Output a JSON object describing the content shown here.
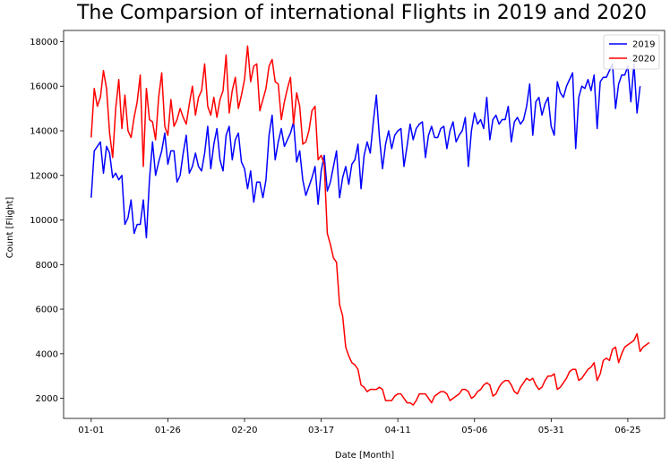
{
  "chart_data": {
    "type": "line",
    "title": "The Comparsion of international Flights in 2019 and 2020",
    "xlabel": "Date [Month]",
    "ylabel": "Count [Flight]",
    "x_tick_labels": [
      "01-01",
      "01-26",
      "02-20",
      "03-17",
      "04-11",
      "05-06",
      "05-31",
      "06-25"
    ],
    "x_tick_days": [
      0,
      25,
      50,
      75,
      100,
      125,
      150,
      175
    ],
    "xlim": [
      -9,
      187
    ],
    "ylim": [
      1100,
      18500
    ],
    "y_ticks": [
      2000,
      4000,
      6000,
      8000,
      10000,
      12000,
      14000,
      16000,
      18000
    ],
    "y_tick_labels": [
      "2000",
      "4000",
      "6000",
      "8000",
      "10000",
      "12000",
      "14000",
      "16000",
      "18000"
    ],
    "x_day_step": 1,
    "legend_position": "top-right",
    "grid": false,
    "series": [
      {
        "name": "2019",
        "color": "#0000ff",
        "values": [
          11000,
          13100,
          13300,
          13500,
          12100,
          13300,
          13000,
          11900,
          12100,
          11800,
          12000,
          9800,
          10100,
          10900,
          9400,
          9800,
          9800,
          10900,
          9200,
          11800,
          13500,
          12000,
          12600,
          13100,
          13900,
          12500,
          13100,
          13100,
          11700,
          12000,
          13000,
          13800,
          12100,
          12400,
          13000,
          12400,
          12200,
          13000,
          14200,
          12300,
          13400,
          14100,
          12700,
          12200,
          13800,
          14200,
          12700,
          13600,
          13900,
          12600,
          12300,
          11400,
          12200,
          10800,
          11700,
          11700,
          11000,
          11800,
          13800,
          14700,
          12700,
          13500,
          14100,
          13300,
          13600,
          13900,
          14400,
          12600,
          13100,
          11800,
          11100,
          11500,
          11900,
          12400,
          10700,
          12200,
          12900,
          11300,
          11700,
          12400,
          13100,
          11000,
          11900,
          12400,
          11600,
          12500,
          12700,
          13400,
          11400,
          12900,
          13500,
          13000,
          14400,
          15600,
          13700,
          12300,
          13400,
          14000,
          13200,
          13800,
          14000,
          14100,
          12400,
          13300,
          14300,
          13600,
          14100,
          14300,
          14400,
          12800,
          13800,
          14200,
          13700,
          13700,
          14100,
          14200,
          13200,
          14000,
          14400,
          13500,
          13800,
          14000,
          14600,
          12400,
          14000,
          14800,
          14300,
          14500,
          14100,
          15500,
          13600,
          14500,
          14700,
          14300,
          14500,
          14500,
          15100,
          13500,
          14400,
          14600,
          14300,
          14500,
          15100,
          16100,
          13800,
          15300,
          15500,
          14700,
          15200,
          15500,
          14200,
          13800,
          16200,
          15700,
          15500,
          16000,
          16300,
          16600,
          13200,
          15500,
          16000,
          15900,
          16300,
          15800,
          16500,
          14100,
          16200,
          16400,
          16400,
          16700,
          17000,
          15000,
          16100,
          16500,
          16500,
          16900,
          15300,
          17000,
          14800,
          16000
        ]
      },
      {
        "name": "2020",
        "color": "#ff0000",
        "values": [
          13700,
          15900,
          15100,
          15500,
          16700,
          15900,
          13900,
          12800,
          15000,
          16300,
          14100,
          15600,
          14000,
          13700,
          14600,
          15300,
          16500,
          12400,
          15900,
          14500,
          14400,
          13600,
          15500,
          16600,
          14200,
          13800,
          15400,
          14200,
          14500,
          15000,
          14600,
          14300,
          15200,
          16000,
          14700,
          15500,
          15800,
          17000,
          15100,
          14700,
          15500,
          14600,
          15400,
          15800,
          17400,
          14800,
          15800,
          16400,
          15000,
          15600,
          16300,
          17800,
          16200,
          16900,
          17000,
          14900,
          15400,
          15900,
          16900,
          17200,
          16200,
          16100,
          14500,
          15300,
          15900,
          16400,
          14300,
          15700,
          15100,
          13400,
          13500,
          14000,
          14900,
          15100,
          12700,
          12900,
          12500,
          9400,
          8900,
          8300,
          8100,
          6200,
          5700,
          4300,
          3900,
          3600,
          3500,
          3300,
          2600,
          2500,
          2300,
          2400,
          2400,
          2400,
          2500,
          2400,
          1900,
          1900,
          1900,
          2100,
          2200,
          2200,
          2000,
          1800,
          1800,
          1700,
          1900,
          2200,
          2200,
          2200,
          2000,
          1800,
          2100,
          2200,
          2300,
          2300,
          2200,
          1900,
          2000,
          2100,
          2200,
          2400,
          2400,
          2300,
          2000,
          2100,
          2300,
          2400,
          2600,
          2700,
          2600,
          2100,
          2200,
          2500,
          2700,
          2800,
          2800,
          2600,
          2300,
          2200,
          2500,
          2700,
          2900,
          2800,
          2900,
          2600,
          2400,
          2500,
          2800,
          3000,
          3000,
          3100,
          2400,
          2500,
          2700,
          2900,
          3200,
          3300,
          3300,
          2800,
          2900,
          3100,
          3300,
          3400,
          3600,
          2800,
          3100,
          3700,
          3800,
          3700,
          4200,
          4300,
          3600,
          4000,
          4300,
          4400,
          4500,
          4600,
          4900,
          4100,
          4300,
          4400,
          4500
        ]
      }
    ]
  }
}
